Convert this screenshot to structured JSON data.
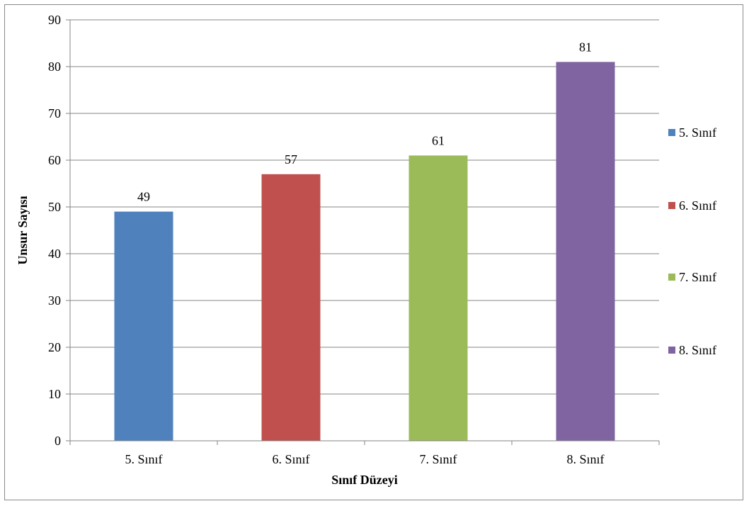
{
  "chart_data": {
    "type": "bar",
    "title": "",
    "categories": [
      "5. Sınıf",
      "6. Sınıf",
      "7. Sınıf",
      "8. Sınıf"
    ],
    "values": [
      49,
      57,
      61,
      81
    ],
    "colors": [
      "#4f81bd",
      "#c0504d",
      "#9bbb59",
      "#8064a2"
    ],
    "xlabel": "Sınıf Düzeyi",
    "ylabel": "Unsur Sayısı",
    "ylim": [
      0,
      90
    ],
    "yticks": [
      "0",
      "10",
      "20",
      "30",
      "40",
      "50",
      "60",
      "70",
      "80",
      "90"
    ],
    "data_labels": [
      "49",
      "57",
      "61",
      "81"
    ],
    "legend": {
      "position": "right",
      "entries": [
        "5. Sınıf",
        "6. Sınıf",
        "7. Sınıf",
        "8. Sınıf"
      ]
    },
    "grid": true,
    "gridline_color": "#868686"
  }
}
